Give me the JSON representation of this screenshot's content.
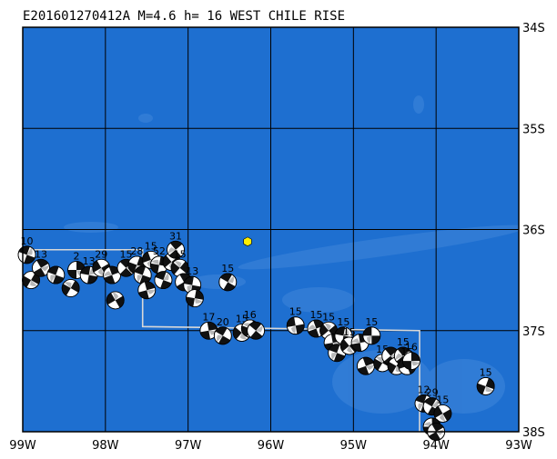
{
  "title": "E201601270412A  M=4.6  h= 16  WEST CHILE RISE",
  "map": {
    "lon_range": [
      -99,
      -93
    ],
    "lat_range": [
      -34,
      -38
    ],
    "x_ticks": [
      {
        "lon": -99,
        "label": "99W"
      },
      {
        "lon": -98,
        "label": "98W"
      },
      {
        "lon": -97,
        "label": "97W"
      },
      {
        "lon": -96,
        "label": "96W"
      },
      {
        "lon": -95,
        "label": "95W"
      },
      {
        "lon": -94,
        "label": "94W"
      },
      {
        "lon": -93,
        "label": "93W"
      }
    ],
    "y_ticks": [
      {
        "lat": -34,
        "label": "34S"
      },
      {
        "lat": -35,
        "label": "35S"
      },
      {
        "lat": -36,
        "label": "36S"
      },
      {
        "lat": -37,
        "label": "37S"
      },
      {
        "lat": -38,
        "label": "38S"
      }
    ],
    "colors": {
      "ocean": "#1e6fd0",
      "ocean_light": "#3f86da",
      "grid": "#000000",
      "boundary": "#d8d8d8",
      "event_marker": "#ffee00",
      "beachball_dark": "#111111",
      "beachball_light": "#ffffff"
    },
    "event": {
      "lon": -96.28,
      "lat": -36.12,
      "icon": "hexagon-icon"
    },
    "plate_boundary": [
      [
        -99.0,
        -36.2
      ],
      [
        -97.55,
        -36.2
      ],
      [
        -97.55,
        -36.96
      ],
      [
        -94.2,
        -37.0
      ],
      [
        -94.2,
        -38.0
      ]
    ],
    "events": [
      {
        "lon": -98.95,
        "lat": -36.25,
        "depth": "10",
        "rot": 20
      },
      {
        "lon": -98.9,
        "lat": -36.5,
        "depth": "",
        "rot": 120
      },
      {
        "lon": -98.78,
        "lat": -36.38,
        "depth": "13",
        "rot": 60
      },
      {
        "lon": -98.6,
        "lat": -36.45,
        "depth": "",
        "rot": 200
      },
      {
        "lon": -98.42,
        "lat": -36.58,
        "depth": "",
        "rot": 300
      },
      {
        "lon": -98.35,
        "lat": -36.4,
        "depth": "2",
        "rot": 90
      },
      {
        "lon": -98.2,
        "lat": -36.45,
        "depth": "13",
        "rot": 10
      },
      {
        "lon": -98.05,
        "lat": -36.38,
        "depth": "29",
        "rot": 150
      },
      {
        "lon": -97.92,
        "lat": -36.45,
        "depth": "",
        "rot": 250
      },
      {
        "lon": -97.88,
        "lat": -36.7,
        "depth": "",
        "rot": 330
      },
      {
        "lon": -97.75,
        "lat": -36.38,
        "depth": "15",
        "rot": 45
      },
      {
        "lon": -97.62,
        "lat": -36.35,
        "depth": "28",
        "rot": 110
      },
      {
        "lon": -97.55,
        "lat": -36.45,
        "depth": "",
        "rot": 200
      },
      {
        "lon": -97.5,
        "lat": -36.6,
        "depth": "",
        "rot": 75
      },
      {
        "lon": -97.45,
        "lat": -36.3,
        "depth": "15",
        "rot": 160
      },
      {
        "lon": -97.35,
        "lat": -36.35,
        "depth": "52",
        "rot": 280
      },
      {
        "lon": -97.3,
        "lat": -36.5,
        "depth": "",
        "rot": 20
      },
      {
        "lon": -97.2,
        "lat": -36.32,
        "depth": "",
        "rot": 140
      },
      {
        "lon": -97.15,
        "lat": -36.2,
        "depth": "31",
        "rot": 230
      },
      {
        "lon": -97.1,
        "lat": -36.38,
        "depth": "15",
        "rot": 310
      },
      {
        "lon": -97.05,
        "lat": -36.52,
        "depth": "",
        "rot": 60
      },
      {
        "lon": -96.95,
        "lat": -36.55,
        "depth": "13",
        "rot": 190
      },
      {
        "lon": -96.92,
        "lat": -36.68,
        "depth": "",
        "rot": 100
      },
      {
        "lon": -96.52,
        "lat": -36.52,
        "depth": "15",
        "rot": 30
      },
      {
        "lon": -96.75,
        "lat": -37.0,
        "depth": "17",
        "rot": 80
      },
      {
        "lon": -96.58,
        "lat": -37.05,
        "depth": "20",
        "rot": 210
      },
      {
        "lon": -96.35,
        "lat": -37.02,
        "depth": "15",
        "rot": 130
      },
      {
        "lon": -96.25,
        "lat": -36.98,
        "depth": "16",
        "rot": 290
      },
      {
        "lon": -96.18,
        "lat": -37.0,
        "depth": "",
        "rot": 40
      },
      {
        "lon": -95.7,
        "lat": -36.95,
        "depth": "15",
        "rot": 170
      },
      {
        "lon": -95.45,
        "lat": -36.98,
        "depth": "15",
        "rot": 250
      },
      {
        "lon": -95.3,
        "lat": -37.0,
        "depth": "15",
        "rot": 320
      },
      {
        "lon": -95.25,
        "lat": -37.12,
        "depth": "",
        "rot": 80
      },
      {
        "lon": -95.2,
        "lat": -37.22,
        "depth": "",
        "rot": 200
      },
      {
        "lon": -95.12,
        "lat": -37.05,
        "depth": "15",
        "rot": 10
      },
      {
        "lon": -95.05,
        "lat": -37.15,
        "depth": "15",
        "rot": 140
      },
      {
        "lon": -94.92,
        "lat": -37.12,
        "depth": "",
        "rot": 260
      },
      {
        "lon": -94.85,
        "lat": -37.35,
        "depth": "",
        "rot": 70
      },
      {
        "lon": -94.78,
        "lat": -37.05,
        "depth": "15",
        "rot": 180
      },
      {
        "lon": -94.65,
        "lat": -37.32,
        "depth": "15",
        "rot": 300
      },
      {
        "lon": -94.55,
        "lat": -37.25,
        "depth": "",
        "rot": 50
      },
      {
        "lon": -94.48,
        "lat": -37.35,
        "depth": "",
        "rot": 120
      },
      {
        "lon": -94.4,
        "lat": -37.25,
        "depth": "15",
        "rot": 230
      },
      {
        "lon": -94.35,
        "lat": -37.35,
        "depth": "15",
        "rot": 340
      },
      {
        "lon": -94.3,
        "lat": -37.3,
        "depth": "16",
        "rot": 90
      },
      {
        "lon": -94.15,
        "lat": -37.72,
        "depth": "12",
        "rot": 200
      },
      {
        "lon": -94.05,
        "lat": -37.75,
        "depth": "29",
        "rot": 30
      },
      {
        "lon": -93.92,
        "lat": -37.82,
        "depth": "15",
        "rot": 150
      },
      {
        "lon": -94.05,
        "lat": -37.95,
        "depth": "",
        "rot": 270
      },
      {
        "lon": -94.0,
        "lat": -38.0,
        "depth": "",
        "rot": 60
      },
      {
        "lon": -93.4,
        "lat": -37.55,
        "depth": "15",
        "rot": 110
      }
    ]
  }
}
